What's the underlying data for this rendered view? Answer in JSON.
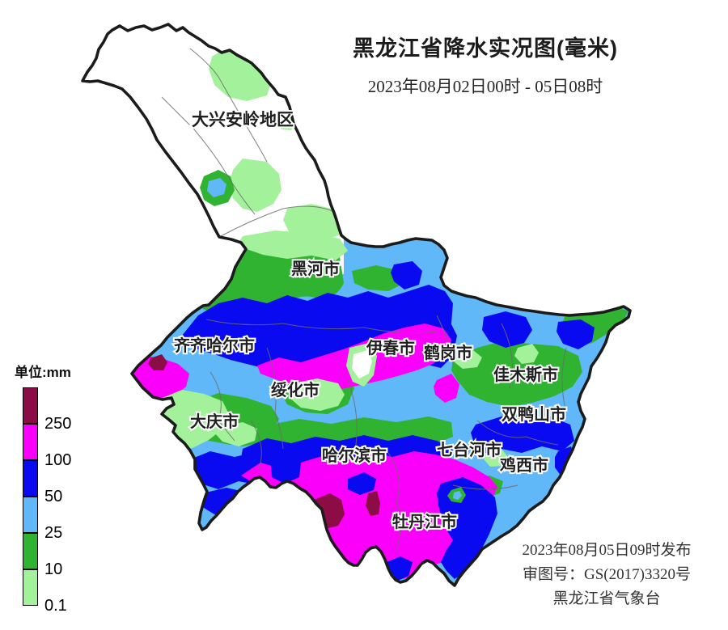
{
  "header": {
    "title": "黑龙江省降水实况图(毫米)",
    "subtitle": "2023年08月02日00时 - 05日08时"
  },
  "legend": {
    "title": "单位:mm",
    "levels": [
      {
        "value": "250",
        "color": "#8C0C45"
      },
      {
        "value": "100",
        "color": "#FA00FA"
      },
      {
        "value": "50",
        "color": "#0A0AF0"
      },
      {
        "value": "25",
        "color": "#60B8F8"
      },
      {
        "value": "10",
        "color": "#30B330"
      },
      {
        "value": "0.1",
        "color": "#A3F29B"
      }
    ]
  },
  "map": {
    "labels": [
      {
        "name": "大兴安岭地区"
      },
      {
        "name": "黑河市"
      },
      {
        "name": "齐齐哈尔市"
      },
      {
        "name": "伊春市"
      },
      {
        "name": "鹤岗市"
      },
      {
        "name": "佳木斯市"
      },
      {
        "name": "绥化市"
      },
      {
        "name": "双鸭山市"
      },
      {
        "name": "大庆市"
      },
      {
        "name": "哈尔滨市"
      },
      {
        "name": "七台河市"
      },
      {
        "name": "鸡西市"
      },
      {
        "name": "牡丹江市"
      }
    ]
  },
  "footer": {
    "issued": "2023年08月05日09时发布",
    "approval": "审图号：GS(2017)3320号",
    "agency": "黑龙江省气象台"
  }
}
